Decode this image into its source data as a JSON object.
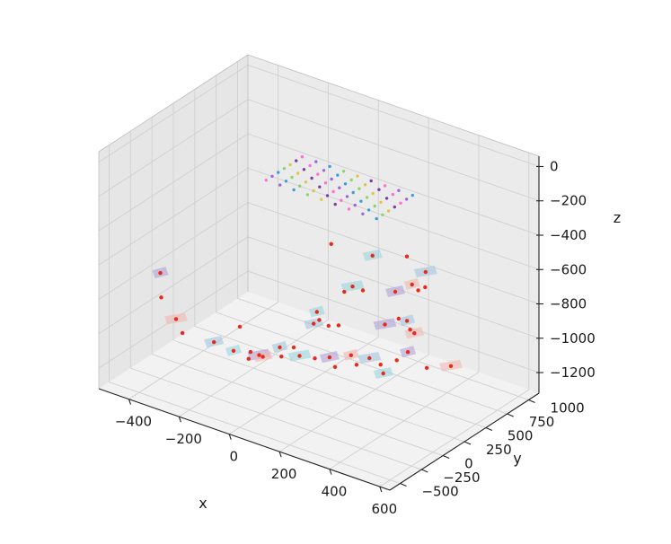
{
  "chart_data": {
    "type": "scatter3d",
    "xlabel": "x",
    "ylabel": "y",
    "zlabel": "z",
    "xlim": [
      -520,
      640
    ],
    "ylim": [
      -620,
      1120
    ],
    "zlim": [
      -1320,
      60
    ],
    "x_ticks": [
      -400,
      -200,
      0,
      200,
      400,
      600
    ],
    "x_tick_labels": [
      "−400",
      "−200",
      "0",
      "200",
      "400",
      "600"
    ],
    "y_ticks": [
      -500,
      -250,
      0,
      250,
      500,
      750,
      1000
    ],
    "y_tick_labels": [
      "−500",
      "−250",
      "0",
      "250",
      "500",
      "750",
      "1000"
    ],
    "z_ticks": [
      0,
      -200,
      -400,
      -600,
      -800,
      -1000,
      -1200
    ],
    "z_tick_labels": [
      "0",
      "−200",
      "−400",
      "−600",
      "−800",
      "−1000",
      "−1200"
    ],
    "grid": true,
    "point_color": "#e8291c",
    "points": [
      [
        -437,
        -145,
        -758
      ],
      [
        -414,
        -202,
        -870
      ],
      [
        -381,
        -126,
        -1004
      ],
      [
        -336,
        -183,
        -1044
      ],
      [
        -244,
        -84,
        -1082
      ],
      [
        -181,
        33,
        -998
      ],
      [
        -157,
        -110,
        -1080
      ],
      [
        -131,
        12,
        -1113
      ],
      [
        -98,
        16,
        -1116
      ],
      [
        -127,
        -22,
        -1140
      ],
      [
        -94,
        47,
        -1134
      ],
      [
        -38,
        100,
        -1121
      ],
      [
        -59,
        142,
        -1092
      ],
      [
        -31,
        223,
        -1104
      ],
      [
        -11,
        233,
        -1147
      ],
      [
        45,
        247,
        -1137
      ],
      [
        86,
        299,
        -1127
      ],
      [
        122,
        257,
        -1151
      ],
      [
        157,
        341,
        -1092
      ],
      [
        182,
        332,
        -1132
      ],
      [
        205,
        416,
        -1109
      ],
      [
        231,
        469,
        -1151
      ],
      [
        260,
        416,
        -1170
      ],
      [
        294,
        474,
        -1095
      ],
      [
        310,
        557,
        -1066
      ],
      [
        341,
        686,
        -1184
      ],
      [
        452,
        643,
        -1103
      ],
      [
        -2,
        545,
        -1068
      ],
      [
        -39,
        479,
        -1053
      ],
      [
        -17,
        480,
        -1021
      ],
      [
        -43,
        529,
        -1003
      ],
      [
        33,
        559,
        -1052
      ],
      [
        154,
        745,
        -1046
      ],
      [
        229,
        820,
        -1062
      ],
      [
        252,
        802,
        -1065
      ],
      [
        196,
        783,
        -1003
      ],
      [
        216,
        822,
        -1018
      ],
      [
        -14,
        763,
        -947
      ],
      [
        3,
        810,
        -923
      ],
      [
        46,
        805,
        -922
      ],
      [
        142,
        901,
        -912
      ],
      [
        191,
        1026,
        -919
      ],
      [
        170,
        1015,
        -892
      ],
      [
        205,
        1066,
        -907
      ],
      [
        203,
        1077,
        -823
      ],
      [
        -58,
        739,
        -683
      ],
      [
        44,
        923,
        -759
      ],
      [
        135,
        1058,
        -761
      ]
    ],
    "grid_point_colors": [
      "#ff6fd0",
      "#9a6ad4",
      "#3aa0d8",
      "#8fd46a",
      "#e0c44e",
      "#7a3fa0"
    ],
    "plane_colors": [
      "#b0a0d6",
      "#b5d6a8",
      "#f0b9b3",
      "#e7c48d",
      "#a3c7dd",
      "#c3c3c3",
      "#9ad5db",
      "#d8b2d2"
    ]
  }
}
